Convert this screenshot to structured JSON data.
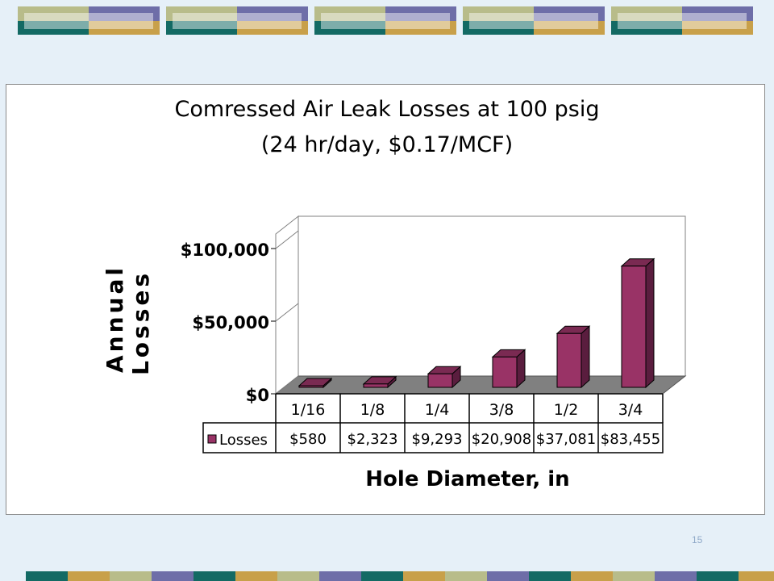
{
  "slide_number": "15",
  "colors": {
    "background": "#e6f0f8",
    "bar_front": "#993366",
    "bar_side": "#5a1d3e",
    "bar_top": "#7a2a52",
    "floor": "#808080",
    "deco_olive": "#b8bc8a",
    "deco_purple": "#6e6ea8",
    "deco_teal": "#136a64",
    "deco_gold": "#c8a04a"
  },
  "chart_data": {
    "type": "bar",
    "style": "3d-column-with-data-table",
    "title": "Comressed Air Leak Losses at 100 psig",
    "subtitle": "(24 hr/day, $0.17/MCF)",
    "xlabel": "Hole Diameter, in",
    "ylabel_lines": [
      "Annual",
      "Losses"
    ],
    "categories": [
      "1/16",
      "1/8",
      "1/4",
      "3/8",
      "1/2",
      "3/4"
    ],
    "series": [
      {
        "name": "Losses",
        "values": [
          580,
          2323,
          9293,
          20908,
          37081,
          83455
        ],
        "value_labels": [
          "$580",
          "$2,323",
          "$9,293",
          "$20,908",
          "$37,081",
          "$83,455"
        ]
      }
    ],
    "ylim": [
      0,
      100000
    ],
    "yticks": [
      0,
      50000,
      100000
    ],
    "ytick_labels": [
      "$0",
      "$50,000",
      "$100,000"
    ],
    "grid": false,
    "legend": "data-table"
  }
}
